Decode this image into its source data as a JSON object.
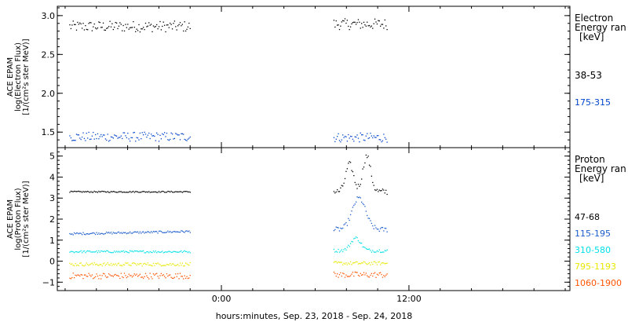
{
  "chart_data": [
    {
      "type": "scatter",
      "panel": "electron",
      "ylabel": [
        "ACE EPAM",
        "log(Electron Flux)",
        "[1/(cm²s ster MeV)]"
      ],
      "ylim": [
        1.3,
        3.12
      ],
      "yticks": [
        1.5,
        2.0,
        2.5,
        3.0
      ],
      "ytick_labels": [
        "1.5",
        "2.0",
        "2.5",
        "3.0"
      ],
      "legend_title": [
        "Electron",
        "Energy ran",
        "[keV]"
      ],
      "legend_placement": "right",
      "grid": false,
      "series": [
        {
          "name": "38-53",
          "color": "#000000",
          "segments": [
            {
              "x": [
                -9.7,
                -2.0
              ],
              "mean": 2.86,
              "amp": 0.07
            },
            {
              "x": [
                7.2,
                10.6
              ],
              "mean": 2.89,
              "amp": 0.07
            }
          ]
        },
        {
          "name": "175-315",
          "color": "#0044cc",
          "segments": [
            {
              "x": [
                -9.7,
                -2.0
              ],
              "mean": 1.44,
              "amp": 0.06
            },
            {
              "x": [
                7.2,
                10.6
              ],
              "mean": 1.43,
              "amp": 0.06
            }
          ]
        }
      ]
    },
    {
      "type": "scatter",
      "panel": "proton",
      "ylabel": [
        "ACE EPAM",
        "log(Proton Flux)",
        "[1/(cm²s ster MeV)]"
      ],
      "ylim": [
        -1.4,
        5.4
      ],
      "yticks": [
        -1,
        0,
        1,
        2,
        3,
        4,
        5
      ],
      "ytick_labels": [
        "−1",
        "0",
        "1",
        "2",
        "3",
        "4",
        "5"
      ],
      "legend_title": [
        "Proton",
        "Energy ran",
        "[keV]"
      ],
      "legend_placement": "right",
      "grid": false,
      "series": [
        {
          "name": "47-68",
          "color": "#000000",
          "segments": [
            {
              "x": [
                -9.7,
                -2.0
              ],
              "mean": 3.3,
              "amp": 0.03
            },
            {
              "x": [
                7.2,
                10.6
              ],
              "mean": 3.3,
              "amp": 0.15,
              "peaks": [
                [
                  8.2,
                  1.3,
                  0.35
                ],
                [
                  9.3,
                  1.7,
                  0.35
                ]
              ]
            }
          ]
        },
        {
          "name": "115-195",
          "color": "#1a5ccc",
          "segments": [
            {
              "x": [
                -9.7,
                -2.0
              ],
              "mean": 1.3,
              "amp": 0.05,
              "slope": 0.015
            },
            {
              "x": [
                7.2,
                10.6
              ],
              "mean": 1.5,
              "amp": 0.12,
              "peaks": [
                [
                  8.8,
                  1.5,
                  0.6
                ]
              ]
            }
          ]
        },
        {
          "name": "310-580",
          "color": "#00e0e8",
          "segments": [
            {
              "x": [
                -9.7,
                -2.0
              ],
              "mean": 0.45,
              "amp": 0.05
            },
            {
              "x": [
                7.2,
                10.6
              ],
              "mean": 0.5,
              "amp": 0.08,
              "peaks": [
                [
                  8.6,
                  0.6,
                  0.45
                ]
              ]
            }
          ]
        },
        {
          "name": "795-1193",
          "color": "#e8e800",
          "segments": [
            {
              "x": [
                -9.7,
                -2.0
              ],
              "mean": -0.15,
              "amp": 0.08
            },
            {
              "x": [
                7.2,
                10.6
              ],
              "mean": -0.1,
              "amp": 0.08
            }
          ]
        },
        {
          "name": "1060-1900",
          "color": "#ff5500",
          "segments": [
            {
              "x": [
                -9.7,
                -2.0
              ],
              "mean": -0.7,
              "amp": 0.14
            },
            {
              "x": [
                7.2,
                10.6
              ],
              "mean": -0.65,
              "amp": 0.14
            }
          ]
        }
      ]
    }
  ],
  "xaxis": {
    "xlim": [
      -10.5,
      22.3
    ],
    "ticks": [
      0,
      12
    ],
    "tick_labels": [
      "0:00",
      "12:00"
    ],
    "xlabel": "hours:minutes, Sep. 23, 2018 - Sep. 24, 2018"
  }
}
